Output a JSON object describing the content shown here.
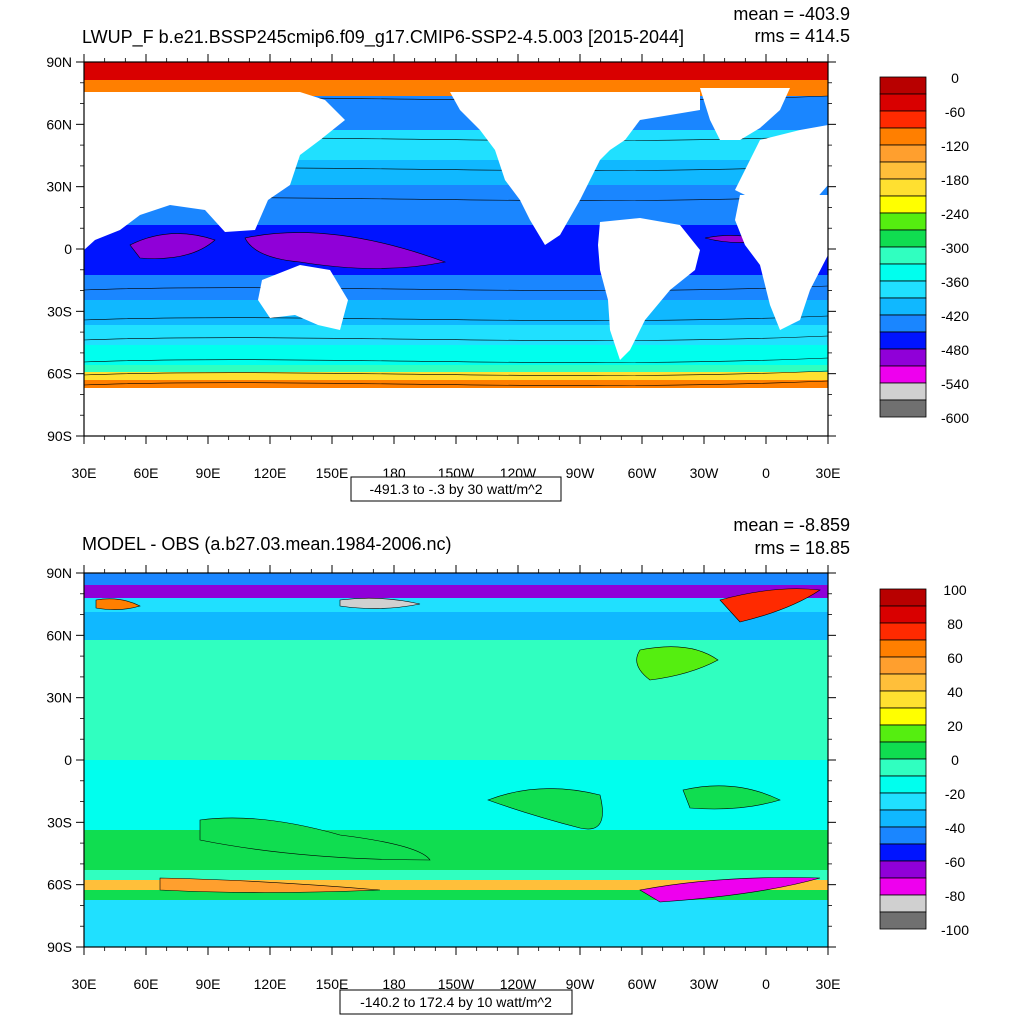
{
  "panels": [
    {
      "title": "LWUP_F b.e21.BSSP245cmip6.f09_g17.CMIP6-SSP2-4.5.003 [2015-2044]",
      "mean_label": "mean = -403.9",
      "rms_label": "rms = 414.5",
      "info_label": "-491.3 to -.3 by 30 watt/m^2",
      "lat_labels": [
        "90N",
        "60N",
        "30N",
        "0",
        "30S",
        "60S",
        "90S"
      ],
      "lon_labels": [
        "30E",
        "60E",
        "90E",
        "120E",
        "150E",
        "180",
        "150W",
        "120W",
        "90W",
        "60W",
        "30W",
        "0",
        "30E"
      ],
      "colorbar": {
        "labels": [
          "0",
          "-60",
          "-120",
          "-180",
          "-240",
          "-300",
          "-360",
          "-420",
          "-480",
          "-540",
          "-600"
        ],
        "colors": [
          "#b80000",
          "#d90000",
          "#ff2a00",
          "#ff7f00",
          "#ff9f2e",
          "#ffbf3a",
          "#ffe030",
          "#ffff00",
          "#55ee10",
          "#10dd50",
          "#30ffc0",
          "#00ffee",
          "#20e0ff",
          "#10b8ff",
          "#1a86ff",
          "#0014ff",
          "#9000d8",
          "#ee00ee",
          "#d0d0d0",
          "#707070"
        ]
      }
    },
    {
      "title": "MODEL - OBS (a.b27.03.mean.1984-2006.nc)",
      "mean_label": "mean = -8.859",
      "rms_label": "rms = 18.85",
      "info_label": "-140.2 to 172.4 by 10 watt/m^2",
      "lat_labels": [
        "90N",
        "60N",
        "30N",
        "0",
        "30S",
        "60S",
        "90S"
      ],
      "lon_labels": [
        "30E",
        "60E",
        "90E",
        "120E",
        "150E",
        "180",
        "150W",
        "120W",
        "90W",
        "60W",
        "30W",
        "0",
        "30E"
      ],
      "colorbar": {
        "labels": [
          "100",
          "80",
          "60",
          "40",
          "20",
          "0",
          "-20",
          "-40",
          "-60",
          "-80",
          "-100"
        ],
        "colors": [
          "#b80000",
          "#d90000",
          "#ff2a00",
          "#ff7f00",
          "#ff9f2e",
          "#ffbf3a",
          "#ffe030",
          "#ffff00",
          "#55ee10",
          "#10dd50",
          "#30ffc0",
          "#00ffee",
          "#20e0ff",
          "#10b8ff",
          "#1a86ff",
          "#0014ff",
          "#9000d8",
          "#ee00ee",
          "#d0d0d0",
          "#707070"
        ]
      }
    }
  ]
}
